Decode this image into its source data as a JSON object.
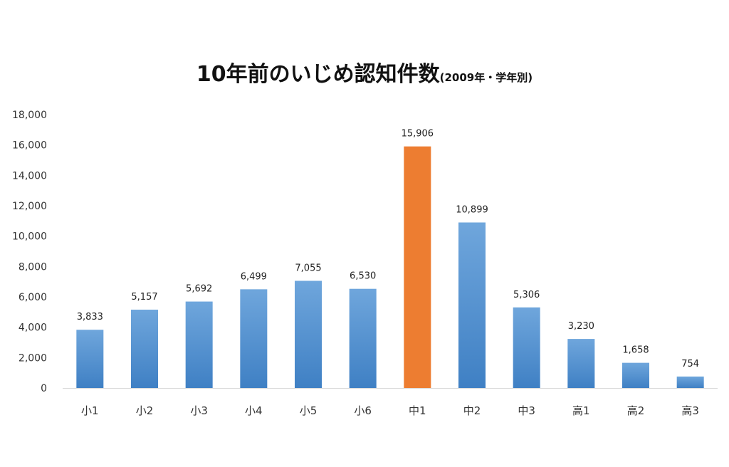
{
  "chart_data": {
    "type": "bar",
    "title": "10年前のいじめ認知件数",
    "subtitle": "(2009年・学年別)",
    "categories": [
      "小1",
      "小2",
      "小3",
      "小4",
      "小5",
      "小6",
      "中1",
      "中2",
      "中3",
      "高1",
      "高2",
      "高3"
    ],
    "values": [
      3833,
      5157,
      5692,
      6499,
      7055,
      6530,
      15906,
      10899,
      5306,
      3230,
      1658,
      754
    ],
    "data_labels": [
      "3,833",
      "5,157",
      "5,692",
      "6,499",
      "7,055",
      "6,530",
      "15,906",
      "10,899",
      "5,306",
      "3,230",
      "1,658",
      "754"
    ],
    "highlight_index": 6,
    "ylim": [
      0,
      18000
    ],
    "yticks": [
      0,
      2000,
      4000,
      6000,
      8000,
      10000,
      12000,
      14000,
      16000,
      18000
    ],
    "ytick_labels": [
      "0",
      "2,000",
      "4,000",
      "6,000",
      "8,000",
      "10,000",
      "12,000",
      "14,000",
      "16,000",
      "18,000"
    ],
    "xlabel": "",
    "ylabel": "",
    "grid": false,
    "legend": "none",
    "colors": {
      "bar_top": "#6fa6dc",
      "bar_bottom": "#3f80c4",
      "highlight": "#ed7d31",
      "axis": "#d9d9d9"
    }
  }
}
